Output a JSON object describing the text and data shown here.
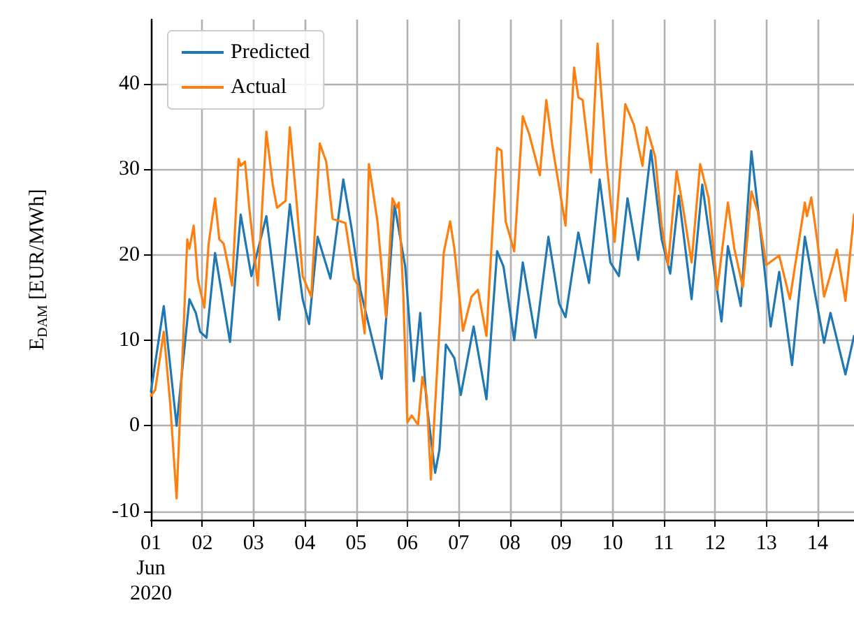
{
  "chart_data": {
    "type": "line",
    "ylabel": "E$_{DAM}$ [EUR/MWh]",
    "xlim": [
      "2020-06-01T00:00",
      "2020-06-14T17:00"
    ],
    "xticks": [
      {
        "value": "2020-06-01",
        "label": "01\nJun\n2020"
      },
      {
        "value": "2020-06-02",
        "label": "02"
      },
      {
        "value": "2020-06-03",
        "label": "03"
      },
      {
        "value": "2020-06-04",
        "label": "04"
      },
      {
        "value": "2020-06-05",
        "label": "05"
      },
      {
        "value": "2020-06-06",
        "label": "06"
      },
      {
        "value": "2020-06-07",
        "label": "07"
      },
      {
        "value": "2020-06-08",
        "label": "08"
      },
      {
        "value": "2020-06-09",
        "label": "09"
      },
      {
        "value": "2020-06-10",
        "label": "10"
      },
      {
        "value": "2020-06-11",
        "label": "11"
      },
      {
        "value": "2020-06-12",
        "label": "12"
      },
      {
        "value": "2020-06-13",
        "label": "13"
      },
      {
        "value": "2020-06-14",
        "label": "14"
      }
    ],
    "ylim": [
      -11,
      47.5
    ],
    "yticks": [
      -10,
      0,
      10,
      20,
      30,
      40
    ],
    "grid": true,
    "legend": "top left",
    "line_style": "solid",
    "marker": "none",
    "series": [
      {
        "name": "Predicted",
        "color": "#1f77b4",
        "x": [
          "2020-06-01T00:00",
          "2020-06-01T06:00",
          "2020-06-01T12:00",
          "2020-06-01T18:00",
          "2020-06-01T21:00",
          "2020-06-01T23:00",
          "2020-06-02T02:00",
          "2020-06-02T06:00",
          "2020-06-02T13:00",
          "2020-06-02T18:00",
          "2020-06-02T23:00",
          "2020-06-03T06:00",
          "2020-06-03T12:00",
          "2020-06-03T17:00",
          "2020-06-03T23:00",
          "2020-06-04T02:00",
          "2020-06-04T06:00",
          "2020-06-04T12:00",
          "2020-06-04T18:00",
          "2020-06-04T22:00",
          "2020-06-05T02:00",
          "2020-06-05T12:00",
          "2020-06-05T18:00",
          "2020-06-05T23:00",
          "2020-06-06T03:00",
          "2020-06-06T06:00",
          "2020-06-06T09:00",
          "2020-06-06T13:00",
          "2020-06-06T15:00",
          "2020-06-06T18:00",
          "2020-06-06T22:00",
          "2020-06-07T01:00",
          "2020-06-07T07:00",
          "2020-06-07T13:00",
          "2020-06-07T18:00",
          "2020-06-07T21:00",
          "2020-06-08T02:00",
          "2020-06-08T06:00",
          "2020-06-08T12:00",
          "2020-06-08T18:00",
          "2020-06-08T23:00",
          "2020-06-09T02:00",
          "2020-06-09T08:00",
          "2020-06-09T13:00",
          "2020-06-09T18:00",
          "2020-06-09T23:00",
          "2020-06-10T03:00",
          "2020-06-10T07:00",
          "2020-06-10T12:00",
          "2020-06-10T18:00",
          "2020-06-10T23:00",
          "2020-06-11T03:00",
          "2020-06-11T07:00",
          "2020-06-11T13:00",
          "2020-06-11T18:00",
          "2020-06-12T03:00",
          "2020-06-12T06:00",
          "2020-06-12T12:00",
          "2020-06-12T17:00",
          "2020-06-12T20:00",
          "2020-06-13T02:00",
          "2020-06-13T06:00",
          "2020-06-13T12:00",
          "2020-06-13T18:00",
          "2020-06-13T23:00",
          "2020-06-14T03:00",
          "2020-06-14T06:00",
          "2020-06-14T13:00",
          "2020-06-14T17:00"
        ],
        "values": [
          4,
          14,
          0,
          14.8,
          13.2,
          11,
          10.3,
          20.2,
          9.8,
          24.7,
          17.5,
          24.5,
          12.4,
          25.9,
          14.8,
          11.9,
          22.1,
          17.2,
          28.8,
          22.9,
          15.9,
          5.5,
          25.8,
          18.6,
          5.2,
          13.2,
          2.6,
          -5.5,
          -2.8,
          9.5,
          7.9,
          3.6,
          11.6,
          3.1,
          20.4,
          18.6,
          10,
          19.1,
          10.3,
          22.1,
          14.3,
          12.7,
          22.6,
          16.7,
          28.8,
          19.1,
          17.5,
          26.6,
          19.4,
          32.2,
          21.8,
          17.8,
          26.9,
          14.8,
          28.2,
          12.2,
          21,
          14,
          32.1,
          25.5,
          11.6,
          18,
          7.1,
          22.1,
          15.1,
          9.7,
          13.2,
          6,
          10.5
        ]
      },
      {
        "name": "Actual",
        "color": "#ff7f0e",
        "x": [
          "2020-06-01T00:00",
          "2020-06-01T02:00",
          "2020-06-01T06:00",
          "2020-06-01T09:00",
          "2020-06-01T12:00",
          "2020-06-01T17:00",
          "2020-06-01T18:00",
          "2020-06-01T20:00",
          "2020-06-01T22:00",
          "2020-06-02T01:00",
          "2020-06-02T03:00",
          "2020-06-02T06:00",
          "2020-06-02T08:00",
          "2020-06-02T10:00",
          "2020-06-02T14:00",
          "2020-06-02T17:00",
          "2020-06-02T18:00",
          "2020-06-02T20:00",
          "2020-06-02T22:00",
          "2020-06-03T02:00",
          "2020-06-03T06:00",
          "2020-06-03T09:00",
          "2020-06-03T11:00",
          "2020-06-03T15:00",
          "2020-06-03T17:00",
          "2020-06-03T20:00",
          "2020-06-03T23:00",
          "2020-06-04T03:00",
          "2020-06-04T07:00",
          "2020-06-04T10:00",
          "2020-06-04T13:00",
          "2020-06-04T19:00",
          "2020-06-04T23:00",
          "2020-06-05T01:00",
          "2020-06-05T04:00",
          "2020-06-05T06:00",
          "2020-06-05T10:00",
          "2020-06-05T14:00",
          "2020-06-05T17:00",
          "2020-06-05T19:00",
          "2020-06-05T20:00",
          "2020-06-05T22:00",
          "2020-06-06T00:00",
          "2020-06-06T02:00",
          "2020-06-06T05:00",
          "2020-06-06T07:00",
          "2020-06-06T09:00",
          "2020-06-06T11:00",
          "2020-06-06T13:00",
          "2020-06-06T17:00",
          "2020-06-06T20:00",
          "2020-06-06T22:00",
          "2020-06-07T02:00",
          "2020-06-07T06:00",
          "2020-06-07T09:00",
          "2020-06-07T13:00",
          "2020-06-07T18:00",
          "2020-06-07T20:00",
          "2020-06-07T22:00",
          "2020-06-08T02:00",
          "2020-06-08T06:00",
          "2020-06-08T09:00",
          "2020-06-08T14:00",
          "2020-06-08T17:00",
          "2020-06-08T20:00",
          "2020-06-09T02:00",
          "2020-06-09T06:00",
          "2020-06-09T08:00",
          "2020-06-09T10:00",
          "2020-06-09T14:00",
          "2020-06-09T17:00",
          "2020-06-09T21:00",
          "2020-06-10T01:00",
          "2020-06-10T06:00",
          "2020-06-10T10:00",
          "2020-06-10T14:00",
          "2020-06-10T16:00",
          "2020-06-10T20:00",
          "2020-06-10T23:00",
          "2020-06-11T02:00",
          "2020-06-11T06:00",
          "2020-06-11T09:00",
          "2020-06-11T13:00",
          "2020-06-11T17:00",
          "2020-06-11T21:00",
          "2020-06-12T01:00",
          "2020-06-12T06:00",
          "2020-06-12T09:00",
          "2020-06-12T13:00",
          "2020-06-12T17:00",
          "2020-06-12T20:00",
          "2020-06-13T00:00",
          "2020-06-13T06:00",
          "2020-06-13T11:00",
          "2020-06-13T18:00",
          "2020-06-13T19:00",
          "2020-06-13T21:00",
          "2020-06-14T00:00",
          "2020-06-14T03:00",
          "2020-06-14T07:00",
          "2020-06-14T09:00",
          "2020-06-14T13:00",
          "2020-06-14T17:00"
        ],
        "values": [
          3.5,
          4.2,
          11,
          2.6,
          -8.5,
          21.8,
          20.7,
          23.4,
          17,
          13.8,
          21.3,
          26.6,
          21.8,
          21.3,
          16.4,
          31.2,
          30.4,
          30.9,
          25.5,
          16.4,
          34.4,
          28.2,
          25.5,
          26.3,
          34.9,
          26.6,
          17.5,
          15.1,
          33,
          30.9,
          24.2,
          23.7,
          17.2,
          16.4,
          10.8,
          30.6,
          23.9,
          12.7,
          26.6,
          25.5,
          26.1,
          15.9,
          0.4,
          1.2,
          0.1,
          5.7,
          3.6,
          -6.3,
          2.5,
          20.2,
          23.9,
          20.7,
          11.1,
          15.1,
          15.9,
          10.5,
          32.5,
          32.2,
          23.9,
          20.4,
          36.2,
          34.1,
          29.3,
          38.1,
          32.5,
          23.4,
          41.9,
          38.4,
          38.1,
          29.6,
          44.7,
          31.4,
          21.5,
          37.6,
          35.2,
          30.4,
          34.9,
          31.4,
          23.4,
          18.8,
          29.8,
          25.5,
          19.1,
          30.6,
          26.6,
          15.9,
          26.1,
          20.7,
          16.2,
          27.4,
          25,
          18.8,
          19.9,
          14.8,
          26.1,
          24.5,
          26.7,
          21.3,
          15.1,
          18.6,
          20.6,
          14.6,
          24.7
        ]
      }
    ]
  }
}
